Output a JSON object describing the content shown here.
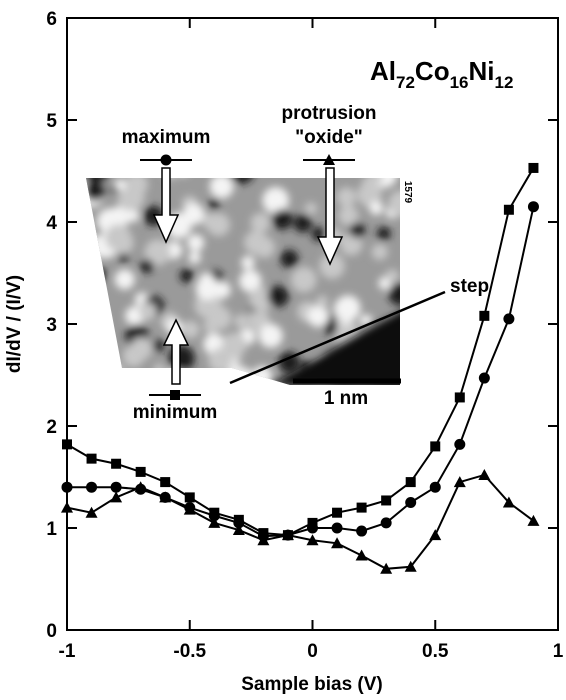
{
  "chart_data": {
    "type": "line",
    "title": "Al72Co16Ni12",
    "x_label": "Sample bias (V)",
    "y_label": "dI/dV / (I/V)",
    "x": [
      -1,
      -0.9,
      -0.8,
      -0.7,
      -0.6,
      -0.5,
      -0.4,
      -0.3,
      -0.2,
      -0.1,
      0,
      0.1,
      0.2,
      0.3,
      0.4,
      0.5,
      0.6,
      0.7,
      0.8,
      0.9
    ],
    "series": [
      {
        "name": "minimum",
        "marker": "square",
        "color": "#000000",
        "values": [
          1.82,
          1.68,
          1.63,
          1.55,
          1.45,
          1.3,
          1.15,
          1.08,
          0.95,
          0.93,
          1.05,
          1.15,
          1.2,
          1.27,
          1.45,
          1.8,
          2.28,
          3.08,
          4.12,
          4.53
        ]
      },
      {
        "name": "maximum",
        "marker": "circle",
        "color": "#000000",
        "values": [
          1.4,
          1.4,
          1.4,
          1.38,
          1.3,
          1.2,
          1.12,
          1.05,
          0.92,
          0.93,
          1.0,
          1.0,
          0.97,
          1.05,
          1.25,
          1.4,
          1.82,
          2.47,
          3.05,
          4.15
        ]
      },
      {
        "name": "protrusion \"oxide\"",
        "marker": "triangle",
        "color": "#000000",
        "values": [
          1.2,
          1.15,
          1.3,
          1.4,
          1.3,
          1.18,
          1.05,
          0.98,
          0.88,
          0.93,
          0.88,
          0.85,
          0.73,
          0.6,
          0.62,
          0.93,
          1.45,
          1.52,
          1.25,
          1.07
        ]
      }
    ],
    "xlim": [
      -1,
      1
    ],
    "ylim": [
      0,
      6
    ],
    "xticks": [
      -1,
      -0.5,
      0,
      0.5,
      1
    ],
    "yticks": [
      0,
      1,
      2,
      3,
      4,
      5,
      6
    ],
    "inset": {
      "scale_bar": "1 nm",
      "step_label": "step",
      "image_id": "1579"
    }
  }
}
